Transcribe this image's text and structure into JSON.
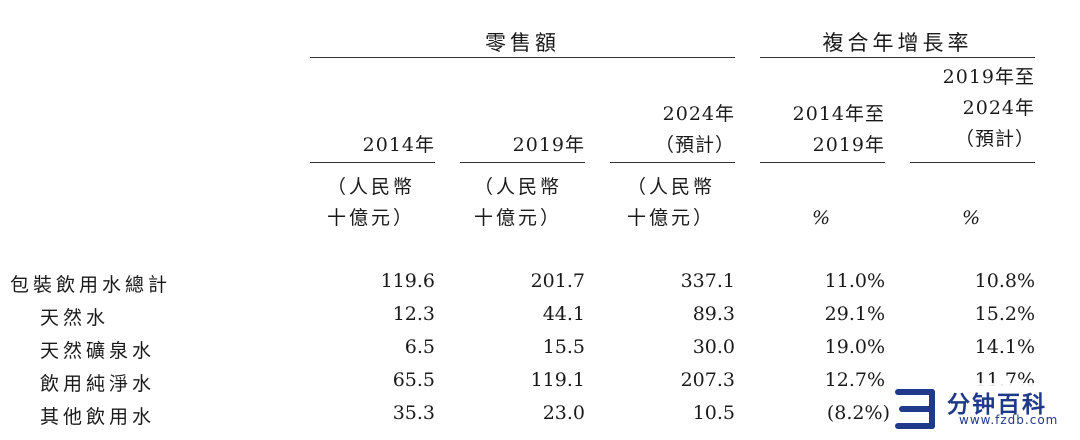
{
  "groups": {
    "retail": "零售額",
    "cagr": "複合年增長率"
  },
  "columns": [
    {
      "header": [
        "2014年"
      ],
      "unit": [
        "（人民幣",
        "十億元）"
      ]
    },
    {
      "header": [
        "2019年"
      ],
      "unit": [
        "（人民幣",
        "十億元）"
      ]
    },
    {
      "header": [
        "2024年",
        "（預計）"
      ],
      "unit": [
        "（人民幣",
        "十億元）"
      ]
    },
    {
      "header": [
        "2014年至",
        "2019年"
      ],
      "unit": [
        "%"
      ]
    },
    {
      "header": [
        "2019年至",
        "2024年",
        "（預計）"
      ],
      "unit": [
        "%"
      ]
    }
  ],
  "rows": [
    {
      "label": "包裝飲用水總計",
      "values": [
        "119.6",
        "201.7",
        "337.1",
        "11.0%",
        "10.8%"
      ]
    },
    {
      "label": "天然水",
      "values": [
        "12.3",
        "44.1",
        "89.3",
        "29.1%",
        "15.2%"
      ]
    },
    {
      "label": "天然礦泉水",
      "values": [
        "6.5",
        "15.5",
        "30.0",
        "19.0%",
        "14.1%"
      ]
    },
    {
      "label": "飲用純淨水",
      "values": [
        "65.5",
        "119.1",
        "207.3",
        "12.7%",
        "11.7%"
      ]
    },
    {
      "label": "其他飲用水",
      "values": [
        "35.3",
        "23.0",
        "10.5",
        "(8.2%)",
        ""
      ]
    }
  ],
  "watermark": {
    "text": "分钟百科",
    "url": "www.fzdb.com",
    "color": "#1f3a8a"
  }
}
